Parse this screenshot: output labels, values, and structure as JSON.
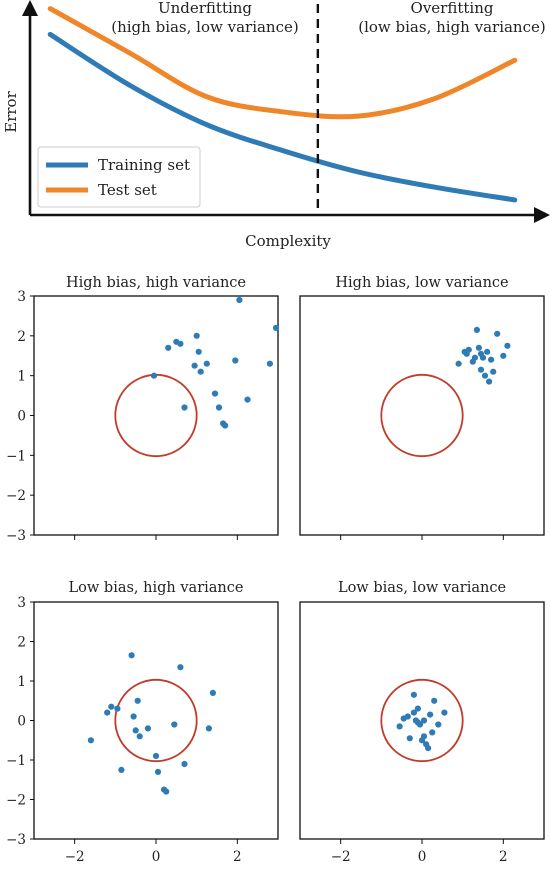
{
  "colors": {
    "training": "#2f7bb6",
    "test": "#f0862a",
    "target": "#c23b2a",
    "points": "#2f7bb6",
    "axis": "#111111"
  },
  "chart_data": [
    {
      "type": "line",
      "title": "",
      "xlabel": "Complexity",
      "ylabel": "Error",
      "legend_position": "bottom-left",
      "grid": false,
      "regions": [
        {
          "title": "Underfitting",
          "subtitle": "(high bias, low variance)"
        },
        {
          "title": "Overfitting",
          "subtitle": "(low bias, high variance)"
        }
      ],
      "x": [
        0.04,
        0.2,
        0.35,
        0.5,
        0.65,
        0.8,
        0.96
      ],
      "series": [
        {
          "name": "Training set",
          "values": [
            0.84,
            0.6,
            0.42,
            0.3,
            0.2,
            0.13,
            0.07
          ]
        },
        {
          "name": "Test set",
          "values": [
            0.96,
            0.75,
            0.55,
            0.48,
            0.46,
            0.54,
            0.72
          ]
        }
      ],
      "divider_x": 0.57
    },
    {
      "type": "scatter",
      "title": "High bias, high variance",
      "xlim": [
        -3,
        3
      ],
      "ylim": [
        -3,
        3
      ],
      "x": [
        -0.05,
        0.3,
        0.5,
        0.6,
        1.0,
        1.05,
        0.95,
        1.25,
        1.1,
        1.45,
        1.55,
        1.65,
        1.7,
        1.95,
        2.05,
        2.25,
        2.8,
        2.95,
        0.7
      ],
      "y": [
        1.0,
        1.7,
        1.85,
        1.8,
        2.0,
        1.6,
        1.25,
        1.3,
        1.1,
        0.55,
        0.2,
        -0.2,
        -0.25,
        1.38,
        2.9,
        0.4,
        1.3,
        2.2,
        0.2
      ]
    },
    {
      "type": "scatter",
      "title": "High bias, low variance",
      "xlim": [
        -3,
        3
      ],
      "ylim": [
        -3,
        3
      ],
      "x": [
        0.9,
        1.05,
        1.1,
        1.15,
        1.3,
        1.25,
        1.35,
        1.4,
        1.5,
        1.45,
        1.55,
        1.65,
        1.7,
        1.75,
        1.6,
        1.85,
        2.0,
        2.1,
        1.45
      ],
      "y": [
        1.3,
        1.6,
        1.55,
        1.65,
        1.45,
        1.35,
        2.15,
        1.7,
        1.45,
        1.15,
        1.0,
        0.85,
        1.4,
        1.1,
        1.6,
        2.05,
        1.5,
        1.75,
        1.55
      ]
    },
    {
      "type": "scatter",
      "title": "Low bias, high variance",
      "xlim": [
        -3,
        3
      ],
      "ylim": [
        -3,
        3
      ],
      "x": [
        -1.6,
        -1.2,
        -1.1,
        -0.95,
        -0.85,
        -0.6,
        -0.55,
        -0.5,
        -0.45,
        -0.4,
        -0.2,
        0.0,
        0.05,
        0.2,
        0.25,
        0.45,
        0.6,
        0.7,
        1.3,
        1.4
      ],
      "y": [
        -0.5,
        0.2,
        0.35,
        0.3,
        -1.25,
        1.65,
        0.1,
        -0.25,
        0.5,
        -0.4,
        -0.2,
        -0.9,
        -1.3,
        -1.75,
        -1.8,
        -0.1,
        1.35,
        -1.1,
        -0.2,
        0.7
      ]
    },
    {
      "type": "scatter",
      "title": "Low bias, low variance",
      "xlim": [
        -3,
        3
      ],
      "ylim": [
        -3,
        3
      ],
      "x": [
        -0.55,
        -0.45,
        -0.35,
        -0.3,
        -0.2,
        -0.15,
        -0.1,
        -0.05,
        0.0,
        0.05,
        0.1,
        0.15,
        0.2,
        0.25,
        0.3,
        0.4,
        0.55,
        -0.2,
        -0.1,
        0.05
      ],
      "y": [
        -0.15,
        0.05,
        0.1,
        -0.45,
        0.2,
        0.0,
        0.3,
        -0.1,
        -0.5,
        0.0,
        -0.6,
        -0.7,
        0.15,
        -0.3,
        0.5,
        -0.1,
        0.2,
        0.65,
        -0.05,
        -0.4
      ]
    }
  ],
  "shared_axes": {
    "ticks": [
      -2,
      0,
      2
    ],
    "tick_labels": [
      "−2",
      "0",
      "2"
    ],
    "y_ticks": [
      3,
      2,
      1,
      0,
      -1,
      -2,
      -3
    ],
    "y_tick_labels": [
      "3",
      "2",
      "1",
      "0",
      "−1",
      "−2",
      "−3"
    ]
  },
  "target_circle": {
    "radius": 1
  }
}
